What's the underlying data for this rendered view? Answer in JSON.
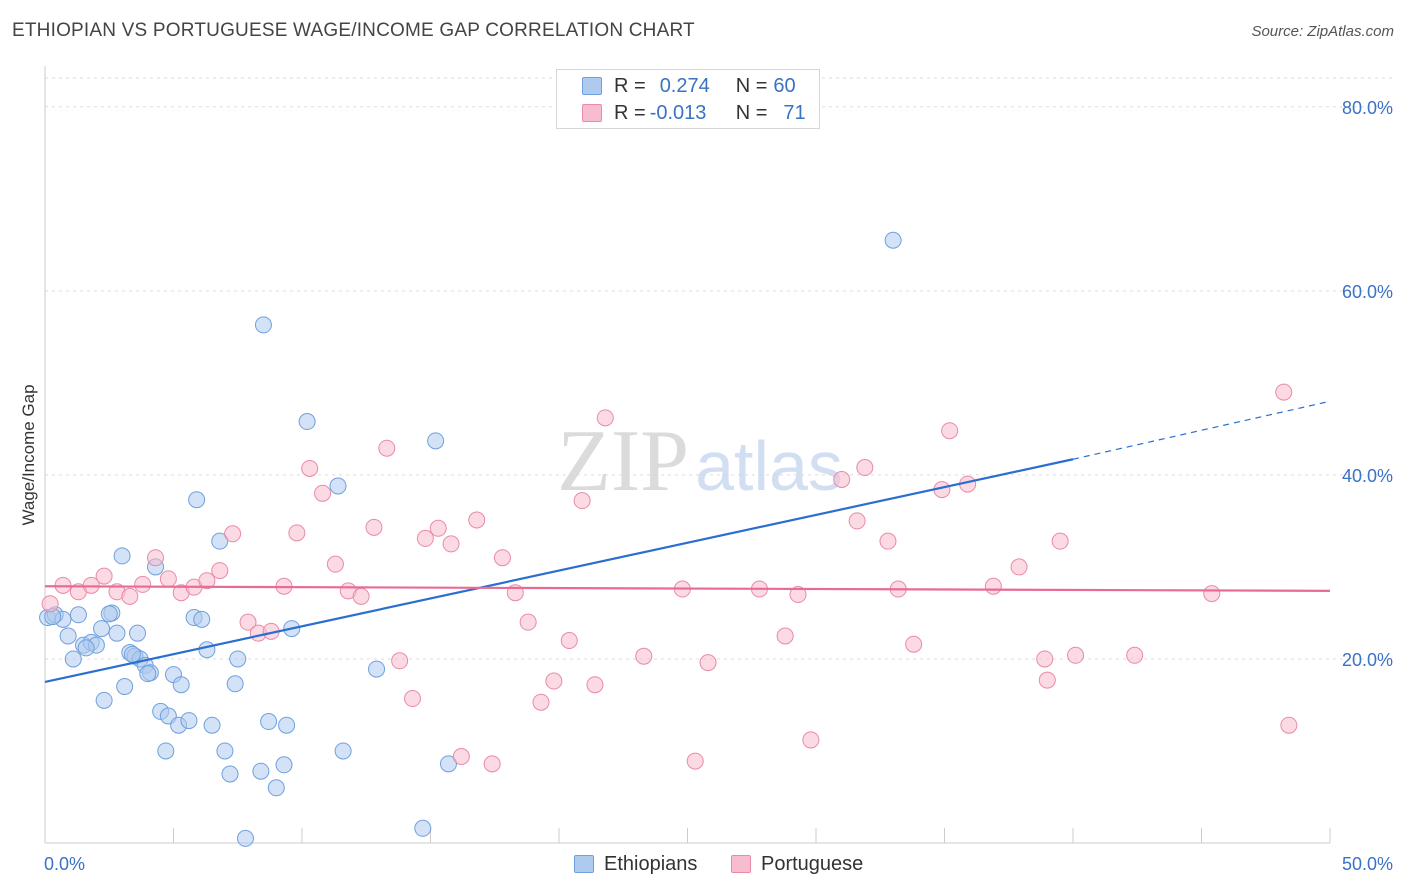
{
  "header": {
    "title": "ETHIOPIAN VS PORTUGUESE WAGE/INCOME GAP CORRELATION CHART",
    "source": "Source: ZipAtlas.com"
  },
  "watermark": {
    "part1": "ZIP",
    "part2": "atlas"
  },
  "legend": {
    "rows": [
      {
        "r_label": "R = ",
        "r_value": "0.274",
        "n_label": "N = ",
        "n_value": "60",
        "color": "#aecbef"
      },
      {
        "r_label": "R = ",
        "r_value": "-0.013",
        "n_label": "N = ",
        "n_value": "71",
        "color": "#f7bccd"
      }
    ],
    "series": [
      "Ethiopians",
      "Portuguese"
    ]
  },
  "chart_data": {
    "type": "scatter",
    "title": "ETHIOPIAN VS PORTUGUESE WAGE/INCOME GAP CORRELATION CHART",
    "xlabel": "",
    "ylabel": "Wage/Income Gap",
    "xlim": [
      0,
      50
    ],
    "ylim": [
      0,
      84
    ],
    "x_tick_labels": [
      "0.0%",
      "50.0%"
    ],
    "y_ticks": [
      20,
      40,
      60,
      80
    ],
    "y_tick_labels": [
      "20.0%",
      "40.0%",
      "60.0%",
      "80.0%"
    ],
    "grid": true,
    "series": [
      {
        "name": "Ethiopians",
        "color": "#6fa0dd",
        "fill": "#aecbef",
        "trend": {
          "x": [
            0,
            40
          ],
          "y": [
            17.5,
            41.7
          ],
          "dashed_to": [
            50,
            48.0
          ],
          "color": "#2a6fd0"
        },
        "points": [
          [
            0.1,
            24.5
          ],
          [
            0.4,
            24.8
          ],
          [
            0.7,
            24.3
          ],
          [
            0.9,
            22.5
          ],
          [
            1.1,
            20.0
          ],
          [
            1.3,
            24.8
          ],
          [
            1.5,
            21.5
          ],
          [
            1.8,
            21.8
          ],
          [
            2.0,
            21.5
          ],
          [
            2.2,
            23.3
          ],
          [
            2.3,
            15.5
          ],
          [
            2.6,
            25.0
          ],
          [
            2.8,
            22.8
          ],
          [
            3.0,
            31.2
          ],
          [
            3.1,
            17.0
          ],
          [
            3.3,
            20.7
          ],
          [
            3.5,
            20.3
          ],
          [
            3.6,
            22.8
          ],
          [
            3.7,
            20.0
          ],
          [
            3.9,
            19.3
          ],
          [
            4.1,
            18.5
          ],
          [
            4.3,
            30.0
          ],
          [
            4.5,
            14.3
          ],
          [
            4.7,
            10.0
          ],
          [
            4.8,
            13.8
          ],
          [
            5.0,
            18.3
          ],
          [
            5.2,
            12.8
          ],
          [
            5.3,
            17.2
          ],
          [
            5.6,
            13.3
          ],
          [
            5.8,
            24.5
          ],
          [
            5.9,
            37.3
          ],
          [
            6.1,
            24.3
          ],
          [
            6.3,
            21.0
          ],
          [
            6.5,
            12.8
          ],
          [
            6.8,
            32.8
          ],
          [
            7.0,
            10.0
          ],
          [
            7.2,
            7.5
          ],
          [
            7.4,
            17.3
          ],
          [
            7.5,
            20.0
          ],
          [
            7.8,
            0.5
          ],
          [
            8.4,
            7.8
          ],
          [
            8.5,
            56.3
          ],
          [
            8.7,
            13.2
          ],
          [
            9.0,
            6.0
          ],
          [
            9.3,
            8.5
          ],
          [
            9.4,
            12.8
          ],
          [
            9.6,
            23.3
          ],
          [
            10.2,
            45.8
          ],
          [
            11.4,
            38.8
          ],
          [
            11.6,
            10.0
          ],
          [
            12.9,
            18.9
          ],
          [
            14.7,
            1.6
          ],
          [
            15.2,
            43.7
          ],
          [
            15.7,
            8.6
          ],
          [
            33.0,
            65.5
          ],
          [
            0.3,
            24.6
          ],
          [
            1.6,
            21.2
          ],
          [
            2.5,
            24.9
          ],
          [
            3.4,
            20.5
          ],
          [
            4.0,
            18.4
          ]
        ]
      },
      {
        "name": "Portuguese",
        "color": "#e98aa8",
        "fill": "#f7bccd",
        "trend": {
          "x": [
            0,
            50
          ],
          "y": [
            27.9,
            27.4
          ],
          "color": "#e86b96"
        },
        "points": [
          [
            0.2,
            26.0
          ],
          [
            0.7,
            28.0
          ],
          [
            1.3,
            27.3
          ],
          [
            1.8,
            28.0
          ],
          [
            2.3,
            29.0
          ],
          [
            2.8,
            27.3
          ],
          [
            3.3,
            26.8
          ],
          [
            3.8,
            28.1
          ],
          [
            4.3,
            31.0
          ],
          [
            4.8,
            28.7
          ],
          [
            5.3,
            27.2
          ],
          [
            5.8,
            27.8
          ],
          [
            6.3,
            28.5
          ],
          [
            6.8,
            29.6
          ],
          [
            7.3,
            33.6
          ],
          [
            7.9,
            24.0
          ],
          [
            8.3,
            22.8
          ],
          [
            8.8,
            23.0
          ],
          [
            9.3,
            27.9
          ],
          [
            9.8,
            33.7
          ],
          [
            10.3,
            40.7
          ],
          [
            10.8,
            38.0
          ],
          [
            11.3,
            30.3
          ],
          [
            11.8,
            27.4
          ],
          [
            12.3,
            26.8
          ],
          [
            12.8,
            34.3
          ],
          [
            13.3,
            42.9
          ],
          [
            13.8,
            19.8
          ],
          [
            14.3,
            15.7
          ],
          [
            14.8,
            33.1
          ],
          [
            15.3,
            34.2
          ],
          [
            15.8,
            32.5
          ],
          [
            16.2,
            9.4
          ],
          [
            16.8,
            35.1
          ],
          [
            17.4,
            8.6
          ],
          [
            17.8,
            31.0
          ],
          [
            18.3,
            27.2
          ],
          [
            18.8,
            24.0
          ],
          [
            19.3,
            15.3
          ],
          [
            19.8,
            17.6
          ],
          [
            20.4,
            22.0
          ],
          [
            20.9,
            37.2
          ],
          [
            21.4,
            17.2
          ],
          [
            21.8,
            46.2
          ],
          [
            23.3,
            20.3
          ],
          [
            24.8,
            27.6
          ],
          [
            25.3,
            8.9
          ],
          [
            25.8,
            19.6
          ],
          [
            27.8,
            27.6
          ],
          [
            28.8,
            22.5
          ],
          [
            29.3,
            27.0
          ],
          [
            29.8,
            11.2
          ],
          [
            31.0,
            39.5
          ],
          [
            31.6,
            35.0
          ],
          [
            31.9,
            40.8
          ],
          [
            32.8,
            32.8
          ],
          [
            33.2,
            27.6
          ],
          [
            33.8,
            21.6
          ],
          [
            34.9,
            38.4
          ],
          [
            35.2,
            44.8
          ],
          [
            35.9,
            39.0
          ],
          [
            36.9,
            27.9
          ],
          [
            37.9,
            30.0
          ],
          [
            38.9,
            20.0
          ],
          [
            39.0,
            17.7
          ],
          [
            39.5,
            32.8
          ],
          [
            40.1,
            20.4
          ],
          [
            42.4,
            20.4
          ],
          [
            45.4,
            27.1
          ],
          [
            48.2,
            49.0
          ],
          [
            48.4,
            12.8
          ]
        ]
      }
    ]
  }
}
